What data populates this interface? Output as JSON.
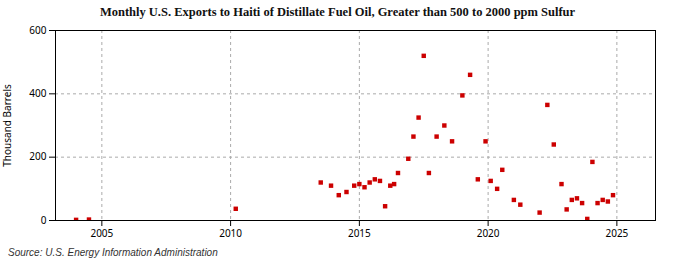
{
  "chart_data": {
    "type": "scatter",
    "title": "Monthly U.S. Exports to Haiti of Distillate Fuel Oil, Greater than 500 to 2000 ppm Sulfur",
    "ylabel": "Thousand Barrels",
    "source": "Source: U.S. Energy Information Administration",
    "color": "#cc0000",
    "marker": "square",
    "grid": true,
    "xlim": [
      2003.2,
      2026.5
    ],
    "ylim": [
      0,
      600
    ],
    "xticks": [
      2005,
      2010,
      2015,
      2020,
      2025
    ],
    "yticks": [
      0,
      200,
      400,
      600
    ],
    "x": [
      2004.0,
      2004.5,
      2010.2,
      2013.5,
      2013.9,
      2014.2,
      2014.5,
      2014.8,
      2015.0,
      2015.2,
      2015.4,
      2015.6,
      2015.8,
      2016.0,
      2016.2,
      2016.35,
      2016.5,
      2016.9,
      2017.1,
      2017.3,
      2017.5,
      2017.7,
      2018.0,
      2018.3,
      2018.6,
      2019.0,
      2019.3,
      2019.6,
      2019.9,
      2020.1,
      2020.35,
      2020.55,
      2021.0,
      2021.25,
      2022.0,
      2022.3,
      2022.55,
      2022.85,
      2023.05,
      2023.25,
      2023.45,
      2023.65,
      2023.85,
      2024.05,
      2024.25,
      2024.45,
      2024.65,
      2024.85
    ],
    "values": [
      2,
      3,
      37,
      120,
      110,
      80,
      90,
      110,
      115,
      105,
      120,
      130,
      125,
      45,
      110,
      115,
      150,
      195,
      265,
      325,
      520,
      150,
      265,
      300,
      250,
      395,
      460,
      130,
      250,
      125,
      100,
      160,
      65,
      50,
      25,
      365,
      240,
      115,
      35,
      65,
      70,
      55,
      5,
      185,
      55,
      65,
      60,
      80
    ]
  }
}
